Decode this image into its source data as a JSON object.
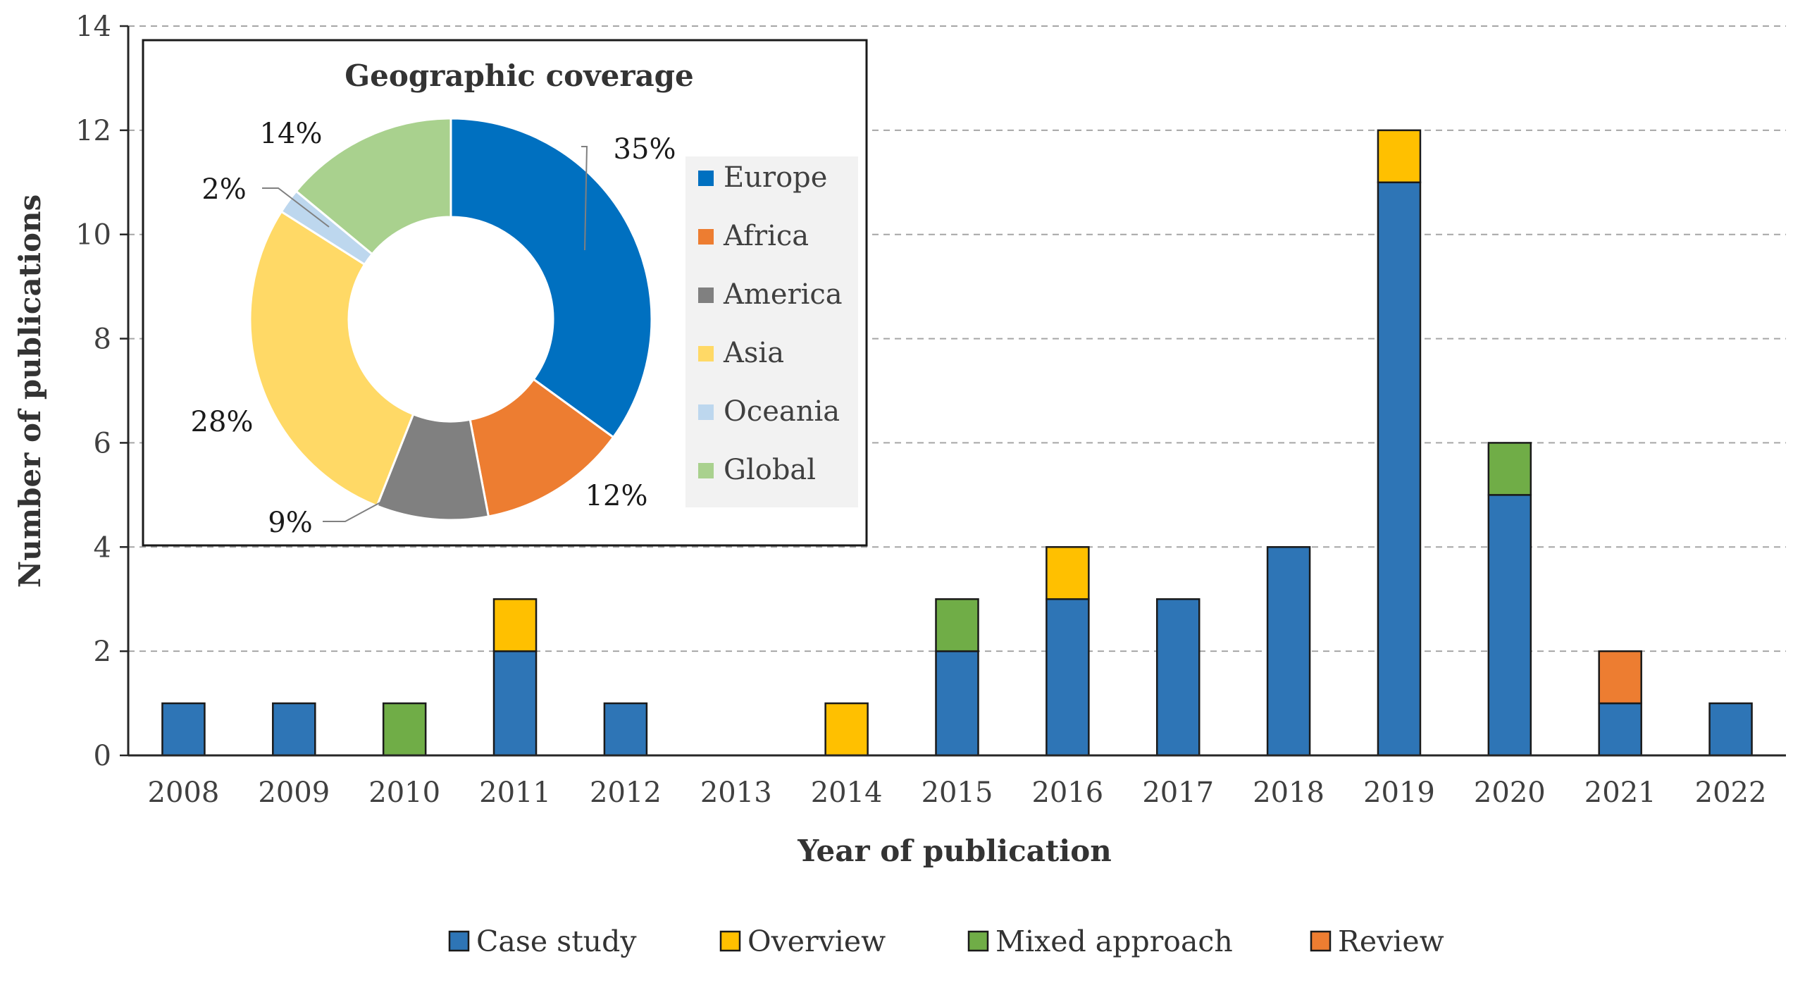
{
  "chart_data": [
    {
      "type": "bar",
      "stacked": true,
      "xlabel": "Year of publication",
      "ylabel": "Number of publications",
      "ylim": [
        0,
        14
      ],
      "yticks": [
        0,
        2,
        4,
        6,
        8,
        10,
        12,
        14
      ],
      "grid": "dashed horizontal",
      "categories": [
        "2008",
        "2009",
        "2010",
        "2011",
        "2012",
        "2013",
        "2014",
        "2015",
        "2016",
        "2017",
        "2018",
        "2019",
        "2020",
        "2021",
        "2022"
      ],
      "series": [
        {
          "name": "Case study",
          "color": "#2E75B6",
          "values": [
            1,
            1,
            0,
            2,
            1,
            0,
            0,
            2,
            3,
            3,
            4,
            11,
            5,
            1,
            1
          ]
        },
        {
          "name": "Overview",
          "color": "#FFC000",
          "values": [
            0,
            0,
            0,
            1,
            0,
            0,
            1,
            0,
            1,
            0,
            0,
            1,
            0,
            0,
            0
          ]
        },
        {
          "name": "Mixed approach",
          "color": "#70AD47",
          "values": [
            0,
            0,
            1,
            0,
            0,
            0,
            0,
            1,
            0,
            0,
            0,
            0,
            1,
            0,
            0
          ]
        },
        {
          "name": "Review",
          "color": "#ED7D31",
          "values": [
            0,
            0,
            0,
            0,
            0,
            0,
            0,
            0,
            0,
            0,
            0,
            0,
            0,
            1,
            0
          ]
        }
      ],
      "legend_position": "bottom"
    },
    {
      "type": "pie",
      "donut": true,
      "title": "Geographic coverage",
      "slices": [
        {
          "name": "Europe",
          "value": 35,
          "label": "35%",
          "color": "#0070C0"
        },
        {
          "name": "Africa",
          "value": 12,
          "label": "12%",
          "color": "#ED7D31"
        },
        {
          "name": "America",
          "value": 9,
          "label": "9%",
          "color": "#808080"
        },
        {
          "name": "Asia",
          "value": 28,
          "label": "28%",
          "color": "#FFD966"
        },
        {
          "name": "Oceania",
          "value": 2,
          "label": "2%",
          "color": "#BDD7EE"
        },
        {
          "name": "Global",
          "value": 14,
          "label": "14%",
          "color": "#A9D18E"
        }
      ],
      "legend_position": "right"
    }
  ]
}
